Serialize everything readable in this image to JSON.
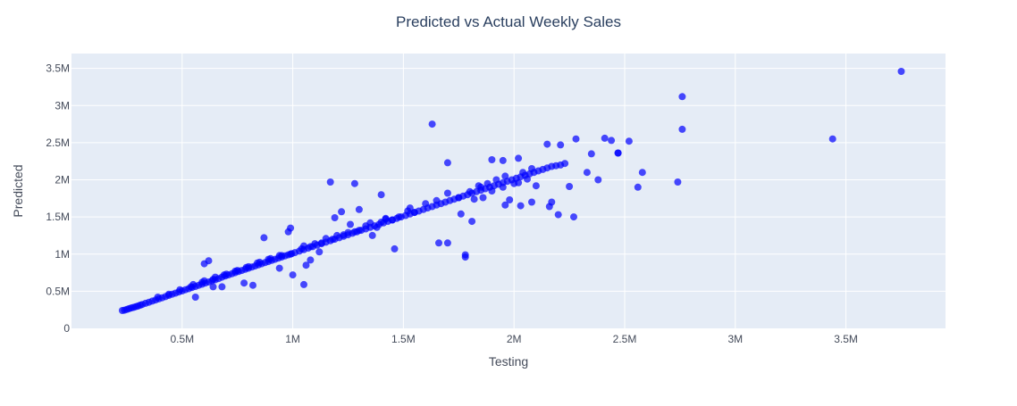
{
  "chart_data": {
    "type": "scatter",
    "title": "Predicted vs Actual Weekly Sales",
    "xlabel": "Testing",
    "ylabel": "Predicted",
    "xlim": [
      0,
      3950000
    ],
    "ylim": [
      0,
      3700000
    ],
    "x_ticks": [
      {
        "value": 500000,
        "label": "0.5M"
      },
      {
        "value": 1000000,
        "label": "1M"
      },
      {
        "value": 1500000,
        "label": "1.5M"
      },
      {
        "value": 2000000,
        "label": "2M"
      },
      {
        "value": 2500000,
        "label": "2.5M"
      },
      {
        "value": 3000000,
        "label": "3M"
      },
      {
        "value": 3500000,
        "label": "3.5M"
      }
    ],
    "y_ticks": [
      {
        "value": 0,
        "label": "0"
      },
      {
        "value": 500000,
        "label": "0.5M"
      },
      {
        "value": 1000000,
        "label": "1M"
      },
      {
        "value": 1500000,
        "label": "1.5M"
      },
      {
        "value": 2000000,
        "label": "2M"
      },
      {
        "value": 2500000,
        "label": "2.5M"
      },
      {
        "value": 3000000,
        "label": "3M"
      },
      {
        "value": 3500000,
        "label": "3.5M"
      }
    ],
    "grid": true,
    "marker_color": "#0000ff",
    "background_color": "#e5ecf6",
    "grid_color": "#ffffff",
    "series": [
      {
        "x": [
          230000,
          240000,
          250000,
          260000,
          270000,
          280000,
          290000,
          300000,
          310000,
          320000,
          335000,
          350000,
          365000,
          380000,
          395000,
          410000,
          425000,
          440000,
          455000,
          470000,
          485000,
          500000,
          515000,
          530000,
          545000,
          560000,
          575000,
          590000,
          605000,
          620000,
          635000,
          650000,
          665000,
          680000,
          695000,
          710000,
          725000,
          740000,
          755000,
          770000,
          785000,
          800000,
          815000,
          830000,
          845000,
          860000,
          875000,
          890000,
          905000,
          920000,
          935000,
          950000,
          965000,
          980000,
          995000,
          1010000,
          1030000,
          1050000,
          1070000,
          1090000,
          1110000,
          1130000,
          1150000,
          1170000,
          1190000,
          1210000,
          1230000,
          1250000,
          1270000,
          1290000,
          1310000,
          1330000,
          1350000,
          1370000,
          1390000,
          1410000,
          1430000,
          1450000,
          1470000,
          1490000,
          1510000,
          1530000,
          1550000,
          1570000,
          1590000,
          1610000,
          1630000,
          1650000,
          1670000,
          1690000,
          1710000,
          1730000,
          1750000,
          1770000,
          1790000,
          1810000,
          1830000,
          1850000,
          1870000,
          1890000,
          1910000,
          1930000,
          1950000,
          1970000,
          1990000,
          2010000,
          2030000,
          2050000,
          2070000,
          2090000,
          2110000,
          2130000,
          2150000,
          2170000,
          2190000,
          2210000,
          2230000,
          1880000,
          1920000,
          1960000,
          2000000,
          2040000,
          2080000,
          1850000,
          1900000,
          1950000,
          2020000,
          2060000,
          1700000,
          1750000,
          1800000,
          1650000,
          1600000,
          1550000,
          1450000,
          1400000,
          1350000,
          1300000,
          1250000,
          1200000,
          1150000,
          1100000,
          1050000,
          950000,
          900000,
          850000,
          800000,
          750000,
          700000,
          650000,
          600000,
          550000,
          1520000,
          1480000,
          1420000,
          1380000,
          1330000,
          1280000,
          1230000,
          1180000,
          1130000,
          1080000,
          1040000,
          990000,
          940000,
          890000,
          840000,
          790000,
          740000,
          690000,
          640000,
          590000,
          540000,
          490000,
          440000,
          390000,
          1630000,
          1170000,
          1280000,
          1700000,
          1400000,
          600000,
          620000,
          870000,
          990000,
          980000,
          1050000,
          1080000,
          1300000,
          1190000,
          1220000,
          1460000,
          1530000,
          1660000,
          1780000,
          1780000,
          1260000,
          1120000,
          1000000,
          1060000,
          940000,
          820000,
          780000,
          680000,
          640000,
          560000,
          2170000,
          2210000,
          2150000,
          2280000,
          2330000,
          2350000,
          2380000,
          2160000,
          2100000,
          2080000,
          2030000,
          2250000,
          2270000,
          2200000,
          1960000,
          1860000,
          1820000,
          2410000,
          2440000,
          2470000,
          2520000,
          2470000,
          2560000,
          2580000,
          2740000,
          2760000,
          2760000,
          3440000,
          3750000,
          1950000,
          1900000,
          1840000,
          1810000,
          1760000,
          2020000,
          1980000,
          1700000,
          1420000,
          1360000
        ],
        "y": [
          240000,
          245000,
          255000,
          265000,
          275000,
          282000,
          292000,
          300000,
          312000,
          322000,
          338000,
          352000,
          368000,
          382000,
          398000,
          412000,
          428000,
          445000,
          460000,
          475000,
          490000,
          505000,
          520000,
          535000,
          550000,
          565000,
          580000,
          595000,
          610000,
          625000,
          640000,
          655000,
          670000,
          690000,
          705000,
          720000,
          735000,
          750000,
          765000,
          780000,
          795000,
          810000,
          825000,
          840000,
          855000,
          870000,
          885000,
          900000,
          915000,
          930000,
          945000,
          960000,
          975000,
          990000,
          1005000,
          1020000,
          1040000,
          1060000,
          1080000,
          1100000,
          1120000,
          1140000,
          1160000,
          1180000,
          1200000,
          1220000,
          1240000,
          1260000,
          1280000,
          1300000,
          1320000,
          1340000,
          1360000,
          1380000,
          1400000,
          1420000,
          1440000,
          1460000,
          1480000,
          1500000,
          1520000,
          1540000,
          1560000,
          1580000,
          1600000,
          1620000,
          1640000,
          1660000,
          1680000,
          1700000,
          1720000,
          1740000,
          1760000,
          1780000,
          1800000,
          1820000,
          1840000,
          1860000,
          1880000,
          1900000,
          1920000,
          1940000,
          1960000,
          1980000,
          2000000,
          2020000,
          2040000,
          2060000,
          2080000,
          2100000,
          2120000,
          2140000,
          2160000,
          2180000,
          2190000,
          2200000,
          2220000,
          1950000,
          2000000,
          2050000,
          1950000,
          2100000,
          2150000,
          1900000,
          1850000,
          1900000,
          1960000,
          2010000,
          1820000,
          1760000,
          1840000,
          1720000,
          1680000,
          1560000,
          1460000,
          1430000,
          1420000,
          1320000,
          1290000,
          1250000,
          1210000,
          1140000,
          1110000,
          980000,
          940000,
          890000,
          830000,
          780000,
          730000,
          690000,
          640000,
          590000,
          1580000,
          1500000,
          1470000,
          1360000,
          1380000,
          1300000,
          1260000,
          1200000,
          1150000,
          1100000,
          1070000,
          1000000,
          980000,
          930000,
          880000,
          820000,
          770000,
          720000,
          660000,
          620000,
          560000,
          520000,
          460000,
          420000,
          2750000,
          1970000,
          1950000,
          2230000,
          1800000,
          870000,
          910000,
          1220000,
          1350000,
          1300000,
          590000,
          920000,
          1600000,
          1490000,
          1570000,
          1070000,
          1620000,
          1150000,
          960000,
          990000,
          1400000,
          1030000,
          720000,
          850000,
          810000,
          580000,
          610000,
          560000,
          560000,
          420000,
          1700000,
          2470000,
          2480000,
          2550000,
          2100000,
          2350000,
          2000000,
          1640000,
          1920000,
          1700000,
          1650000,
          1910000,
          1500000,
          1530000,
          1660000,
          1760000,
          1740000,
          2560000,
          2530000,
          2360000,
          2520000,
          2360000,
          1900000,
          2100000,
          1970000,
          2680000,
          3120000,
          2550000,
          3460000,
          2260000,
          2270000,
          1920000,
          1440000,
          1540000,
          2290000,
          1730000,
          1150000,
          1480000,
          1250000
        ]
      }
    ]
  }
}
